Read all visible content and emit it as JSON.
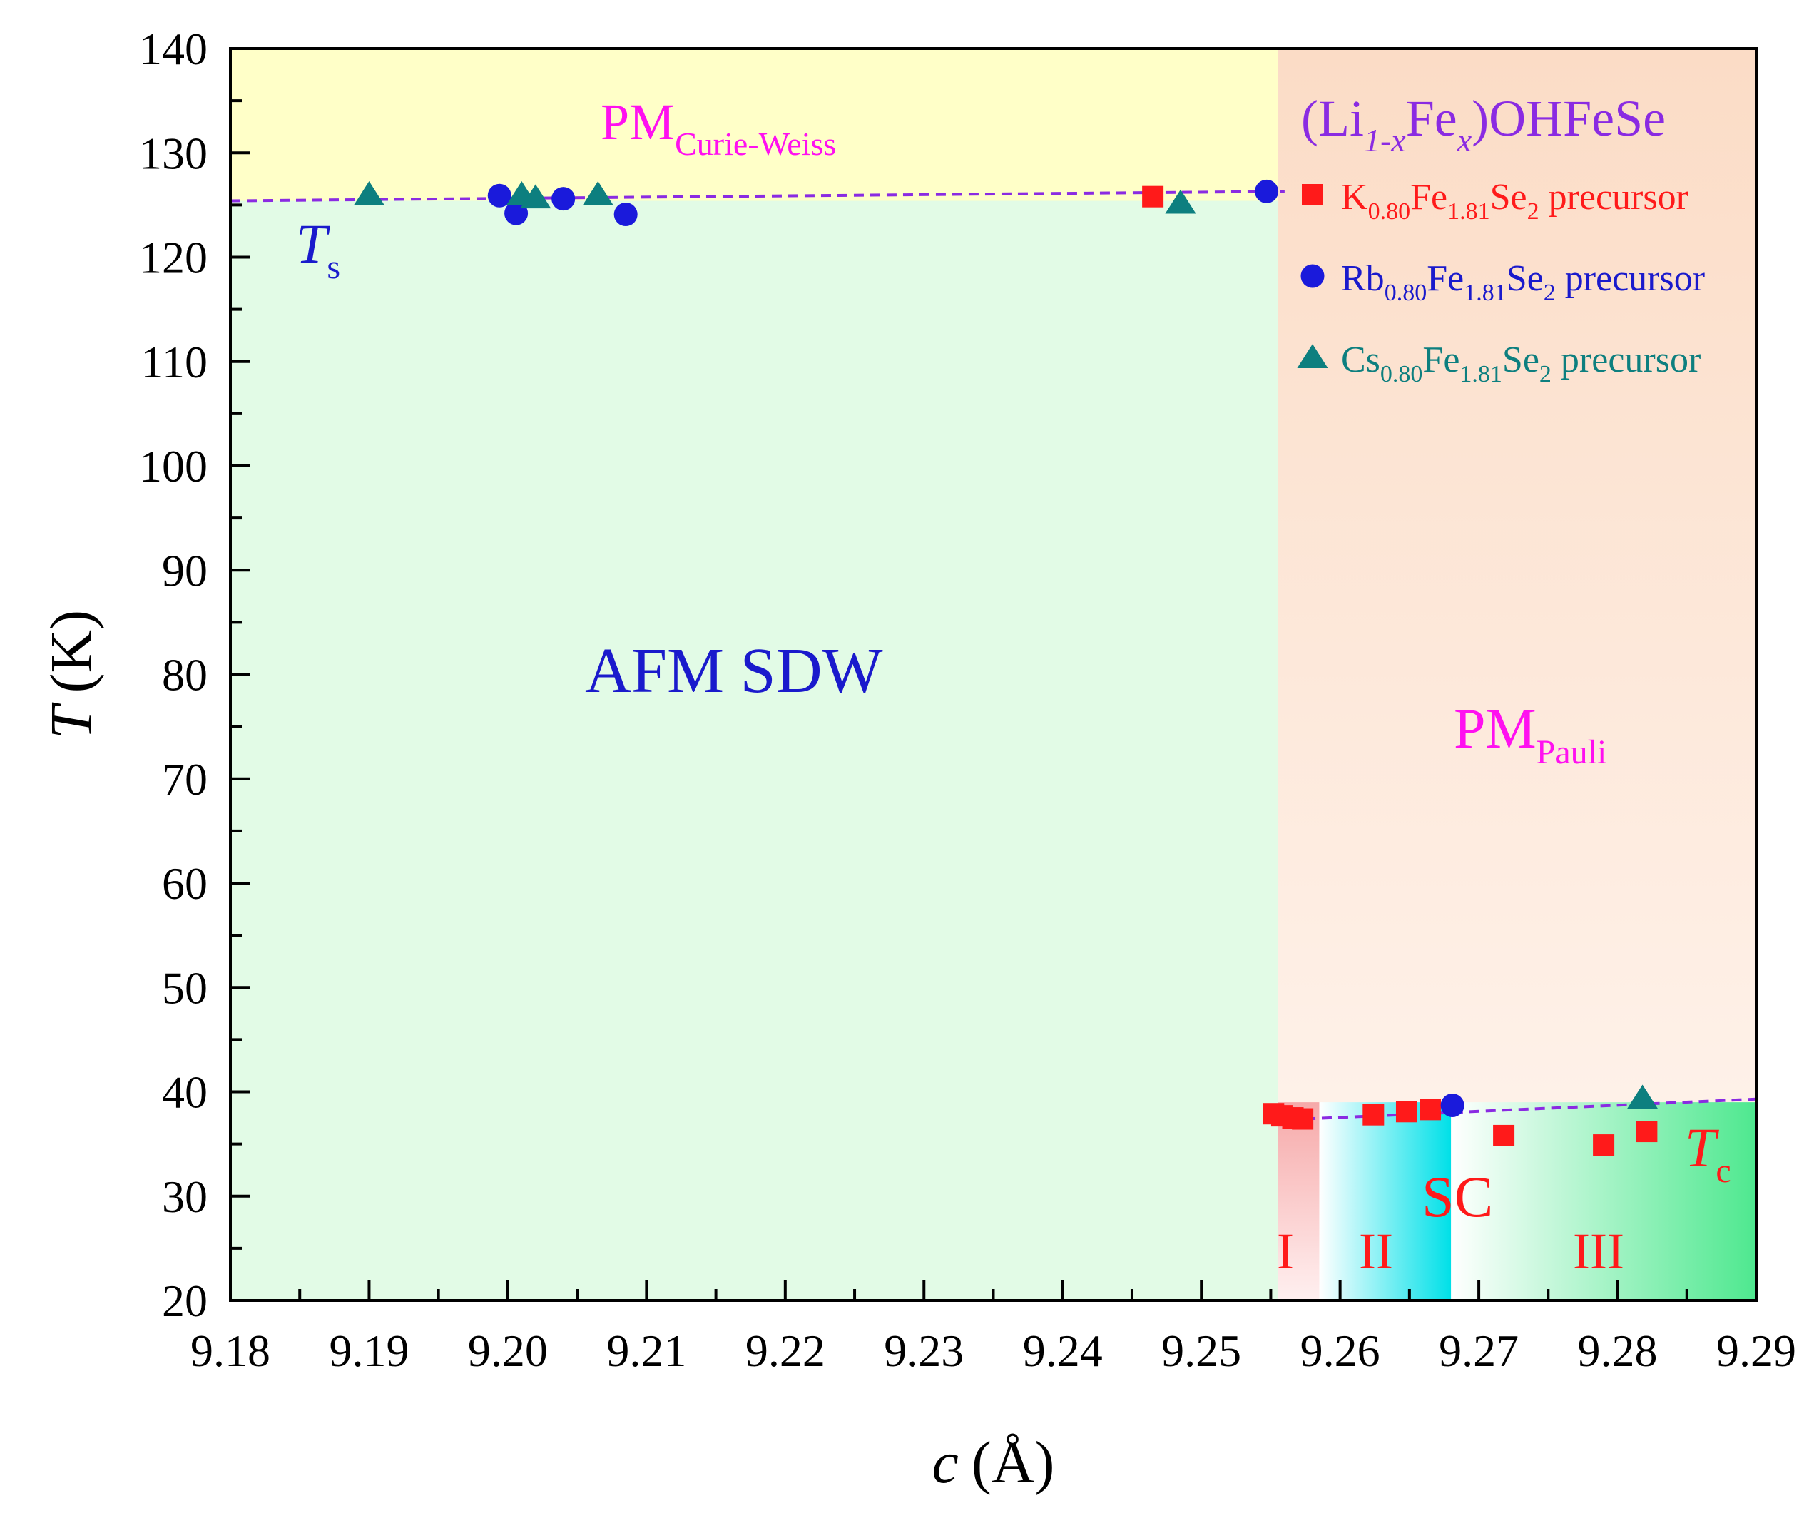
{
  "chart_data": {
    "type": "scatter",
    "title": "",
    "xlabel": "c (Å)",
    "xlabel_parts": {
      "var": "c",
      "unit": "(Å)"
    },
    "ylabel": "T (K)",
    "ylabel_parts": {
      "var": "T",
      "unit": "(K)"
    },
    "xlim": [
      9.18,
      9.29
    ],
    "ylim": [
      20,
      140
    ],
    "x_ticks": [
      "9.18",
      "9.19",
      "9.20",
      "9.21",
      "9.22",
      "9.23",
      "9.24",
      "9.25",
      "9.26",
      "9.27",
      "9.28",
      "9.29"
    ],
    "y_ticks": [
      "20",
      "30",
      "40",
      "50",
      "60",
      "70",
      "80",
      "90",
      "100",
      "110",
      "120",
      "130",
      "140"
    ],
    "compound": {
      "pre": "(Li",
      "sub1": "1-x",
      "mid": "Fe",
      "sub2": "x",
      "post": ")OHFeSe"
    },
    "series": [
      {
        "name": "K0.80Fe1.81Se2 precursor",
        "legend": {
          "el1": "K",
          "s1": "0.80",
          "el2": "Fe",
          "s2": "1.81",
          "el3": "Se",
          "s3": "2",
          "tail": " precursor"
        },
        "marker": "square",
        "color": "#ff1a1a",
        "points": [
          [
            9.2465,
            125.8
          ],
          [
            9.2552,
            37.9
          ],
          [
            9.2558,
            37.7
          ],
          [
            9.2566,
            37.5
          ],
          [
            9.2573,
            37.4
          ],
          [
            9.2624,
            37.8
          ],
          [
            9.2648,
            38.1
          ],
          [
            9.2665,
            38.3
          ],
          [
            9.2718,
            35.8
          ],
          [
            9.279,
            34.9
          ],
          [
            9.2821,
            36.2
          ]
        ]
      },
      {
        "name": "Rb0.80Fe1.81Se2 precursor",
        "legend": {
          "el1": "Rb",
          "s1": "0.80",
          "el2": "Fe",
          "s2": "1.81",
          "el3": "Se",
          "s3": "2",
          "tail": " precursor"
        },
        "marker": "circle",
        "color": "#1a1adb",
        "points": [
          [
            9.1994,
            125.9
          ],
          [
            9.2006,
            124.2
          ],
          [
            9.204,
            125.6
          ],
          [
            9.2085,
            124.1
          ],
          [
            9.2547,
            126.3
          ],
          [
            9.2681,
            38.7
          ]
        ]
      },
      {
        "name": "Cs0.80Fe1.81Se2 precursor",
        "legend": {
          "el1": "Cs",
          "s1": "0.80",
          "el2": "Fe",
          "s2": "1.81",
          "el3": "Se",
          "s3": "2",
          "tail": " precursor"
        },
        "marker": "triangle",
        "color": "#0d7f7f",
        "points": [
          [
            9.19,
            126.0
          ],
          [
            9.201,
            126.0
          ],
          [
            9.202,
            125.7
          ],
          [
            9.2065,
            126.0
          ],
          [
            9.2485,
            125.2
          ],
          [
            9.2818,
            39.4
          ]
        ]
      }
    ],
    "boundaries": {
      "Ts_line": [
        [
          9.18,
          125.4
        ],
        [
          9.256,
          126.3
        ]
      ],
      "Tc_line": [
        [
          9.2575,
          37.4
        ],
        [
          9.29,
          39.3
        ]
      ],
      "phase_boundary_c": 9.2555,
      "sc_region_I": [
        9.2555,
        9.2585
      ],
      "sc_region_II": [
        9.2585,
        9.268
      ],
      "sc_region_III": [
        9.268,
        9.29
      ],
      "sc_top": 39
    },
    "region_labels": {
      "pm_cw": {
        "main": "PM",
        "sub": "Curie-Weiss"
      },
      "pm_pauli": {
        "main": "PM",
        "sub": "Pauli"
      },
      "afm": "AFM SDW",
      "sc": "SC",
      "Ts": {
        "main": "T",
        "sub": "s"
      },
      "Tc": {
        "main": "T",
        "sub": "c"
      },
      "r1": "I",
      "r2": "II",
      "r3": "III"
    },
    "colors": {
      "afm_fill": "#e2fbe6",
      "pm_cw_fill": "#ffffc8",
      "pauli_top": "#fbdcc6",
      "pauli_bottom": "#fff5ef",
      "line": "#8a2be2",
      "magenta": "#ff10f0",
      "blue_text": "#1a1acc",
      "red_text": "#ff1a1a",
      "purple_text": "#8a2be2",
      "teal_text": "#0d7f7f"
    }
  }
}
